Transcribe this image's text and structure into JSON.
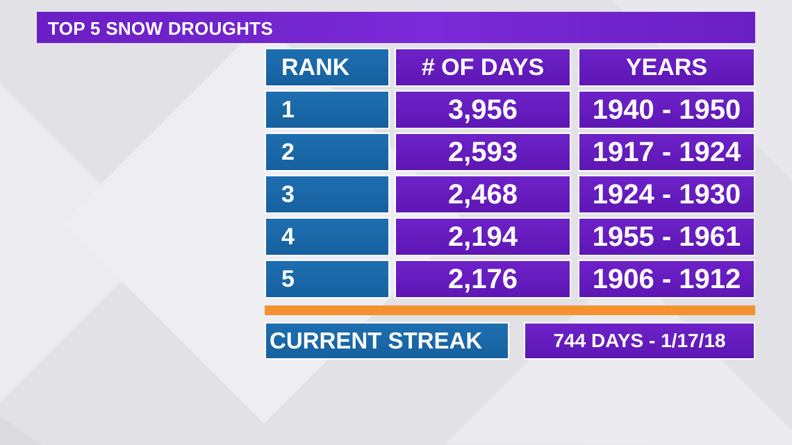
{
  "title": "TOP 5 SNOW DROUGHTS",
  "table": {
    "headers": [
      "RANK",
      "# OF DAYS",
      "YEARS"
    ],
    "rows": [
      {
        "rank": "1",
        "days": "3,956",
        "years": "1940 - 1950"
      },
      {
        "rank": "2",
        "days": "2,593",
        "years": "1917 - 1924"
      },
      {
        "rank": "3",
        "days": "2,468",
        "years": "1924 - 1930"
      },
      {
        "rank": "4",
        "days": "2,194",
        "years": "1955 - 1961"
      },
      {
        "rank": "5",
        "days": "2,176",
        "years": "1906 - 1912"
      }
    ]
  },
  "streak": {
    "label": "CURRENT STREAK",
    "value": "744 DAYS - 1/17/18"
  },
  "colors": {
    "purple": "#6a1fc4",
    "blue": "#1a68a8",
    "orange": "#f5922f",
    "background": "#e4e4e8"
  }
}
